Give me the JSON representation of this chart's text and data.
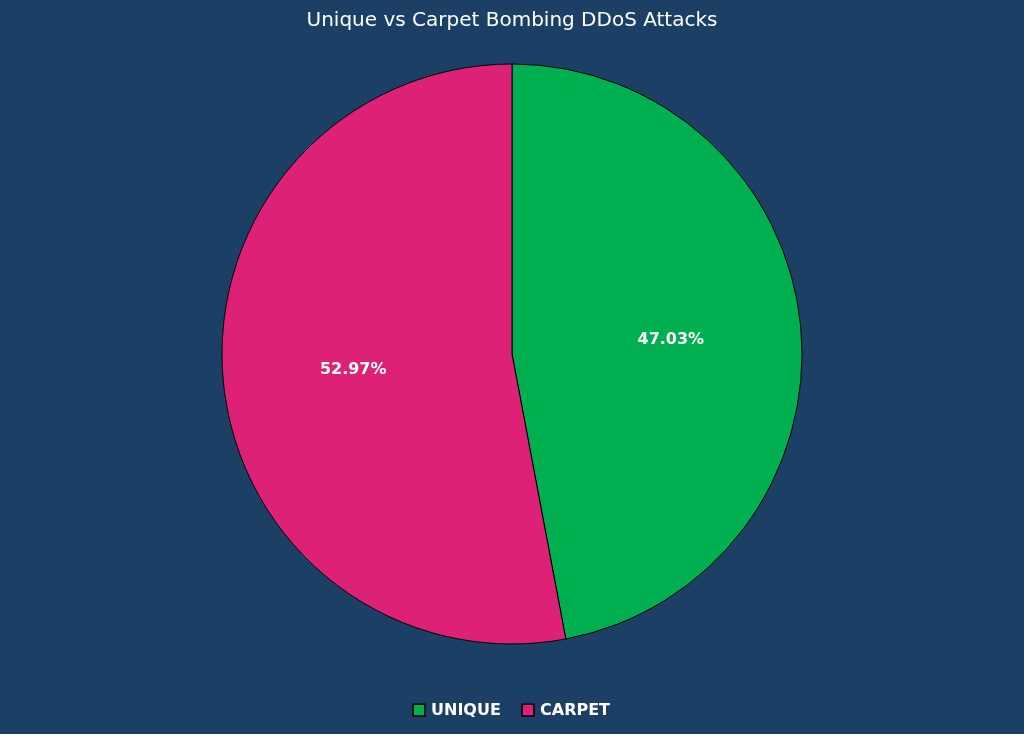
{
  "chart_data": {
    "type": "pie",
    "title": "Unique vs Carpet Bombing DDoS Attacks",
    "categories": [
      "UNIQUE",
      "CARPET"
    ],
    "values": [
      47.03,
      52.97
    ],
    "colors": [
      "#00b050",
      "#dd2177"
    ],
    "value_labels": [
      "47.03%",
      "52.97%"
    ],
    "legend": "bottom"
  }
}
